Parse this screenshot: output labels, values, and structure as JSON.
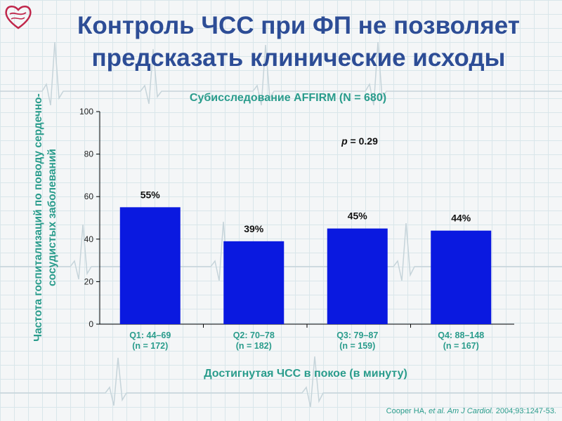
{
  "page": {
    "title_lines": [
      "Контроль ЧСС при ФП не позволяет",
      "предсказать клинические исходы"
    ],
    "citation": {
      "authors": "Cooper HA, ",
      "etal": "et al. Am J Cardiol.",
      "rest": " 2004;93:1247-53."
    },
    "colors": {
      "title": "#2d4d96",
      "accent": "#2a9c8c",
      "bar": "#0a19e0"
    }
  },
  "chart_data": {
    "type": "bar",
    "title": "Субисследование AFFIRM  (N = 680)",
    "ylabel": "Частота госпитализаций по поводу сердечно-сосудистых заболеваний",
    "xlabel": "Достигнутая ЧСС в покое (в минуту)",
    "categories": [
      [
        "Q1: 44–69",
        "(n = 172)"
      ],
      [
        "Q2: 70–78",
        "(n = 182)"
      ],
      [
        "Q3: 79–87",
        "(n = 159)"
      ],
      [
        "Q4: 88–148",
        "(n = 167)"
      ]
    ],
    "values": [
      55,
      39,
      45,
      44
    ],
    "data_labels": [
      "55%",
      "39%",
      "45%",
      "44%"
    ],
    "yticks": [
      0,
      20,
      40,
      60,
      80,
      100
    ],
    "ylim": [
      0,
      100
    ],
    "annotation": {
      "label": "p",
      "text": " = 0.29"
    },
    "grid": false
  }
}
